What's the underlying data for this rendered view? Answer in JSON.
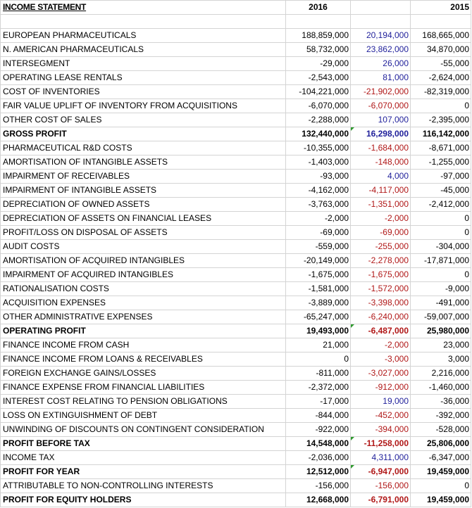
{
  "header": {
    "title": "INCOME STATEMENT",
    "col_2016": "2016",
    "col_diff": "",
    "col_2015": "2015"
  },
  "rows": [
    {
      "label": "EUROPEAN PHARMACEUTICALS",
      "v2016": "188,859,000",
      "diff": "20,194,000",
      "v2015": "168,665,000",
      "tone": "pos",
      "bold": false,
      "flag": false
    },
    {
      "label": "N. AMERICAN PHARMACEUTICALS",
      "v2016": "58,732,000",
      "diff": "23,862,000",
      "v2015": "34,870,000",
      "tone": "pos",
      "bold": false,
      "flag": false
    },
    {
      "label": "INTERSEGMENT",
      "v2016": "-29,000",
      "diff": "26,000",
      "v2015": "-55,000",
      "tone": "pos",
      "bold": false,
      "flag": false
    },
    {
      "label": "OPERATING LEASE RENTALS",
      "v2016": "-2,543,000",
      "diff": "81,000",
      "v2015": "-2,624,000",
      "tone": "pos",
      "bold": false,
      "flag": false
    },
    {
      "label": "COST OF INVENTORIES",
      "v2016": "-104,221,000",
      "diff": "-21,902,000",
      "v2015": "-82,319,000",
      "tone": "neg",
      "bold": false,
      "flag": false
    },
    {
      "label": "FAIR VALUE UPLIFT OF INVENTORY FROM ACQUISITIONS",
      "v2016": "-6,070,000",
      "diff": "-6,070,000",
      "v2015": "0",
      "tone": "neg",
      "bold": false,
      "flag": false
    },
    {
      "label": "OTHER COST OF SALES",
      "v2016": "-2,288,000",
      "diff": "107,000",
      "v2015": "-2,395,000",
      "tone": "pos",
      "bold": false,
      "flag": false
    },
    {
      "label": "GROSS PROFIT",
      "v2016": "132,440,000",
      "diff": "16,298,000",
      "v2015": "116,142,000",
      "tone": "pos",
      "bold": true,
      "flag": true
    },
    {
      "label": "PHARMACEUTICAL R&D COSTS",
      "v2016": "-10,355,000",
      "diff": "-1,684,000",
      "v2015": "-8,671,000",
      "tone": "neg",
      "bold": false,
      "flag": false
    },
    {
      "label": "AMORTISATION OF INTANGIBLE ASSETS",
      "v2016": "-1,403,000",
      "diff": "-148,000",
      "v2015": "-1,255,000",
      "tone": "neg",
      "bold": false,
      "flag": false
    },
    {
      "label": "IMPAIRMENT OF RECEIVABLES",
      "v2016": "-93,000",
      "diff": "4,000",
      "v2015": "-97,000",
      "tone": "pos",
      "bold": false,
      "flag": false
    },
    {
      "label": "IMPAIRMENT OF INTANGIBLE ASSETS",
      "v2016": "-4,162,000",
      "diff": "-4,117,000",
      "v2015": "-45,000",
      "tone": "neg",
      "bold": false,
      "flag": false
    },
    {
      "label": "DEPRECIATION OF OWNED ASSETS",
      "v2016": "-3,763,000",
      "diff": "-1,351,000",
      "v2015": "-2,412,000",
      "tone": "neg",
      "bold": false,
      "flag": false
    },
    {
      "label": "DEPRECIATION OF ASSETS ON FINANCIAL LEASES",
      "v2016": "-2,000",
      "diff": "-2,000",
      "v2015": "0",
      "tone": "neg",
      "bold": false,
      "flag": false
    },
    {
      "label": "PROFIT/LOSS ON DISPOSAL OF ASSETS",
      "v2016": "-69,000",
      "diff": "-69,000",
      "v2015": "0",
      "tone": "neg",
      "bold": false,
      "flag": false
    },
    {
      "label": "AUDIT COSTS",
      "v2016": "-559,000",
      "diff": "-255,000",
      "v2015": "-304,000",
      "tone": "neg",
      "bold": false,
      "flag": false
    },
    {
      "label": "AMORTISATION OF ACQUIRED INTANGIBLES",
      "v2016": "-20,149,000",
      "diff": "-2,278,000",
      "v2015": "-17,871,000",
      "tone": "neg",
      "bold": false,
      "flag": false
    },
    {
      "label": "IMPAIRMENT OF ACQUIRED INTANGIBLES",
      "v2016": "-1,675,000",
      "diff": "-1,675,000",
      "v2015": "0",
      "tone": "neg",
      "bold": false,
      "flag": false
    },
    {
      "label": "RATIONALISATION COSTS",
      "v2016": "-1,581,000",
      "diff": "-1,572,000",
      "v2015": "-9,000",
      "tone": "neg",
      "bold": false,
      "flag": false
    },
    {
      "label": "ACQUISITION EXPENSES",
      "v2016": "-3,889,000",
      "diff": "-3,398,000",
      "v2015": "-491,000",
      "tone": "neg",
      "bold": false,
      "flag": false
    },
    {
      "label": "OTHER ADMINISTRATIVE EXPENSES",
      "v2016": "-65,247,000",
      "diff": "-6,240,000",
      "v2015": "-59,007,000",
      "tone": "neg",
      "bold": false,
      "flag": false
    },
    {
      "label": "OPERATING PROFIT",
      "v2016": "19,493,000",
      "diff": "-6,487,000",
      "v2015": "25,980,000",
      "tone": "neg",
      "bold": true,
      "flag": true
    },
    {
      "label": "FINANCE INCOME FROM CASH",
      "v2016": "21,000",
      "diff": "-2,000",
      "v2015": "23,000",
      "tone": "neg",
      "bold": false,
      "flag": false
    },
    {
      "label": "FINANCE INCOME FROM LOANS & RECEIVABLES",
      "v2016": "0",
      "diff": "-3,000",
      "v2015": "3,000",
      "tone": "neg",
      "bold": false,
      "flag": false
    },
    {
      "label": "FOREIGN EXCHANGE GAINS/LOSSES",
      "v2016": "-811,000",
      "diff": "-3,027,000",
      "v2015": "2,216,000",
      "tone": "neg",
      "bold": false,
      "flag": false
    },
    {
      "label": "FINANCE EXPENSE FROM FINANCIAL LIABILITIES",
      "v2016": "-2,372,000",
      "diff": "-912,000",
      "v2015": "-1,460,000",
      "tone": "neg",
      "bold": false,
      "flag": false
    },
    {
      "label": "INTEREST COST RELATING TO PENSION OBLIGATIONS",
      "v2016": "-17,000",
      "diff": "19,000",
      "v2015": "-36,000",
      "tone": "pos",
      "bold": false,
      "flag": false
    },
    {
      "label": "LOSS ON EXTINGUISHMENT OF DEBT",
      "v2016": "-844,000",
      "diff": "-452,000",
      "v2015": "-392,000",
      "tone": "neg",
      "bold": false,
      "flag": false
    },
    {
      "label": "UNWINDING OF DISCOUNTS ON CONTINGENT CONSIDERATION",
      "v2016": "-922,000",
      "diff": "-394,000",
      "v2015": "-528,000",
      "tone": "neg",
      "bold": false,
      "flag": false
    },
    {
      "label": "PROFIT BEFORE TAX",
      "v2016": "14,548,000",
      "diff": "-11,258,000",
      "v2015": "25,806,000",
      "tone": "neg",
      "bold": true,
      "flag": true
    },
    {
      "label": "INCOME TAX",
      "v2016": "-2,036,000",
      "diff": "4,311,000",
      "v2015": "-6,347,000",
      "tone": "pos",
      "bold": false,
      "flag": false
    },
    {
      "label": "PROFIT FOR YEAR",
      "v2016": "12,512,000",
      "diff": "-6,947,000",
      "v2015": "19,459,000",
      "tone": "neg",
      "bold": true,
      "flag": true
    },
    {
      "label": "ATTRIBUTABLE TO NON-CONTROLLING INTERESTS",
      "v2016": "-156,000",
      "diff": "-156,000",
      "v2015": "0",
      "tone": "neg",
      "bold": false,
      "flag": false
    },
    {
      "label": "PROFIT FOR EQUITY HOLDERS",
      "v2016": "12,668,000",
      "diff": "-6,791,000",
      "v2015": "19,459,000",
      "tone": "neg",
      "bold": true,
      "flag": false
    }
  ]
}
